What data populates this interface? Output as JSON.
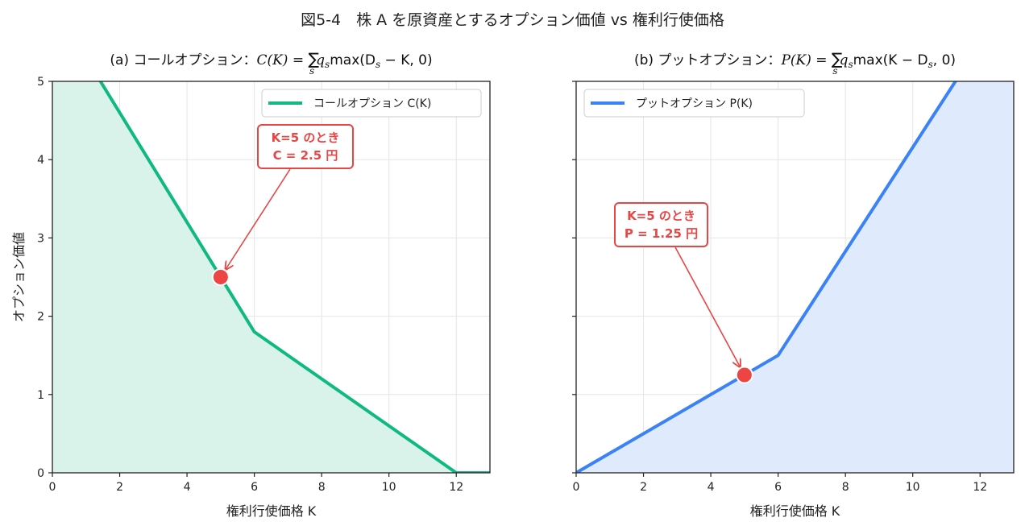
{
  "figure": {
    "title": "図5-4　株 A を原資産とするオプション価値 vs 権利行使価格"
  },
  "chart_data": [
    {
      "type": "line",
      "title": "(a) コールオプション：C(K) = Σ_s q_s max(D_s − K, 0)",
      "title_prefix": "(a) コールオプション：",
      "formula": {
        "lhs": "C(K) = ",
        "sum": "∑",
        "sub": "s",
        "body": "q",
        "body_sub": "s",
        "rest": "max(D",
        "rest_sub": "s",
        "tail": " − K, 0)"
      },
      "xlabel": "権利行使価格 K",
      "ylabel": "オプション価値",
      "xlim": [
        0,
        13
      ],
      "ylim": [
        0,
        5
      ],
      "xticks": [
        0,
        2,
        4,
        6,
        8,
        10,
        12
      ],
      "yticks": [
        0,
        1,
        2,
        3,
        4,
        5
      ],
      "grid": true,
      "legend_position": "upper-right",
      "color": "#10b981",
      "fill_color": "#d9f2ea",
      "series": [
        {
          "name": "コールオプション C(K)",
          "x": [
            0,
            6,
            12,
            13
          ],
          "y": [
            6.0,
            1.8,
            0,
            0
          ]
        }
      ],
      "highlight": {
        "x": 5,
        "y": 2.5
      },
      "annotation": {
        "line1": "K=5 のとき",
        "line2": "C = 2.5 円"
      }
    },
    {
      "type": "line",
      "title": "(b) プットオプション：P(K) = Σ_s q_s max(K − D_s, 0)",
      "title_prefix": "(b) プットオプション：",
      "formula": {
        "lhs": "P(K) = ",
        "sum": "∑",
        "sub": "s",
        "body": "q",
        "body_sub": "s",
        "rest": "max(K − D",
        "rest_sub": "s",
        "tail": ", 0)"
      },
      "xlabel": "権利行使価格 K",
      "ylabel": "",
      "xlim": [
        0,
        13
      ],
      "ylim": [
        0,
        5
      ],
      "xticks": [
        0,
        2,
        4,
        6,
        8,
        10,
        12
      ],
      "yticks": [
        0,
        1,
        2,
        3,
        4,
        5
      ],
      "grid": true,
      "legend_position": "upper-left",
      "color": "#3b82f6",
      "fill_color": "#dfebfc",
      "series": [
        {
          "name": "プットオプション P(K)",
          "x": [
            0,
            6,
            13
          ],
          "y": [
            0,
            1.5,
            6.15
          ]
        }
      ],
      "highlight": {
        "x": 5,
        "y": 1.25
      },
      "annotation": {
        "line1": "K=5 のとき",
        "line2": "P = 1.25 円"
      }
    }
  ],
  "colors": {
    "highlight": "#ef4444",
    "annotation": "#e84545"
  }
}
